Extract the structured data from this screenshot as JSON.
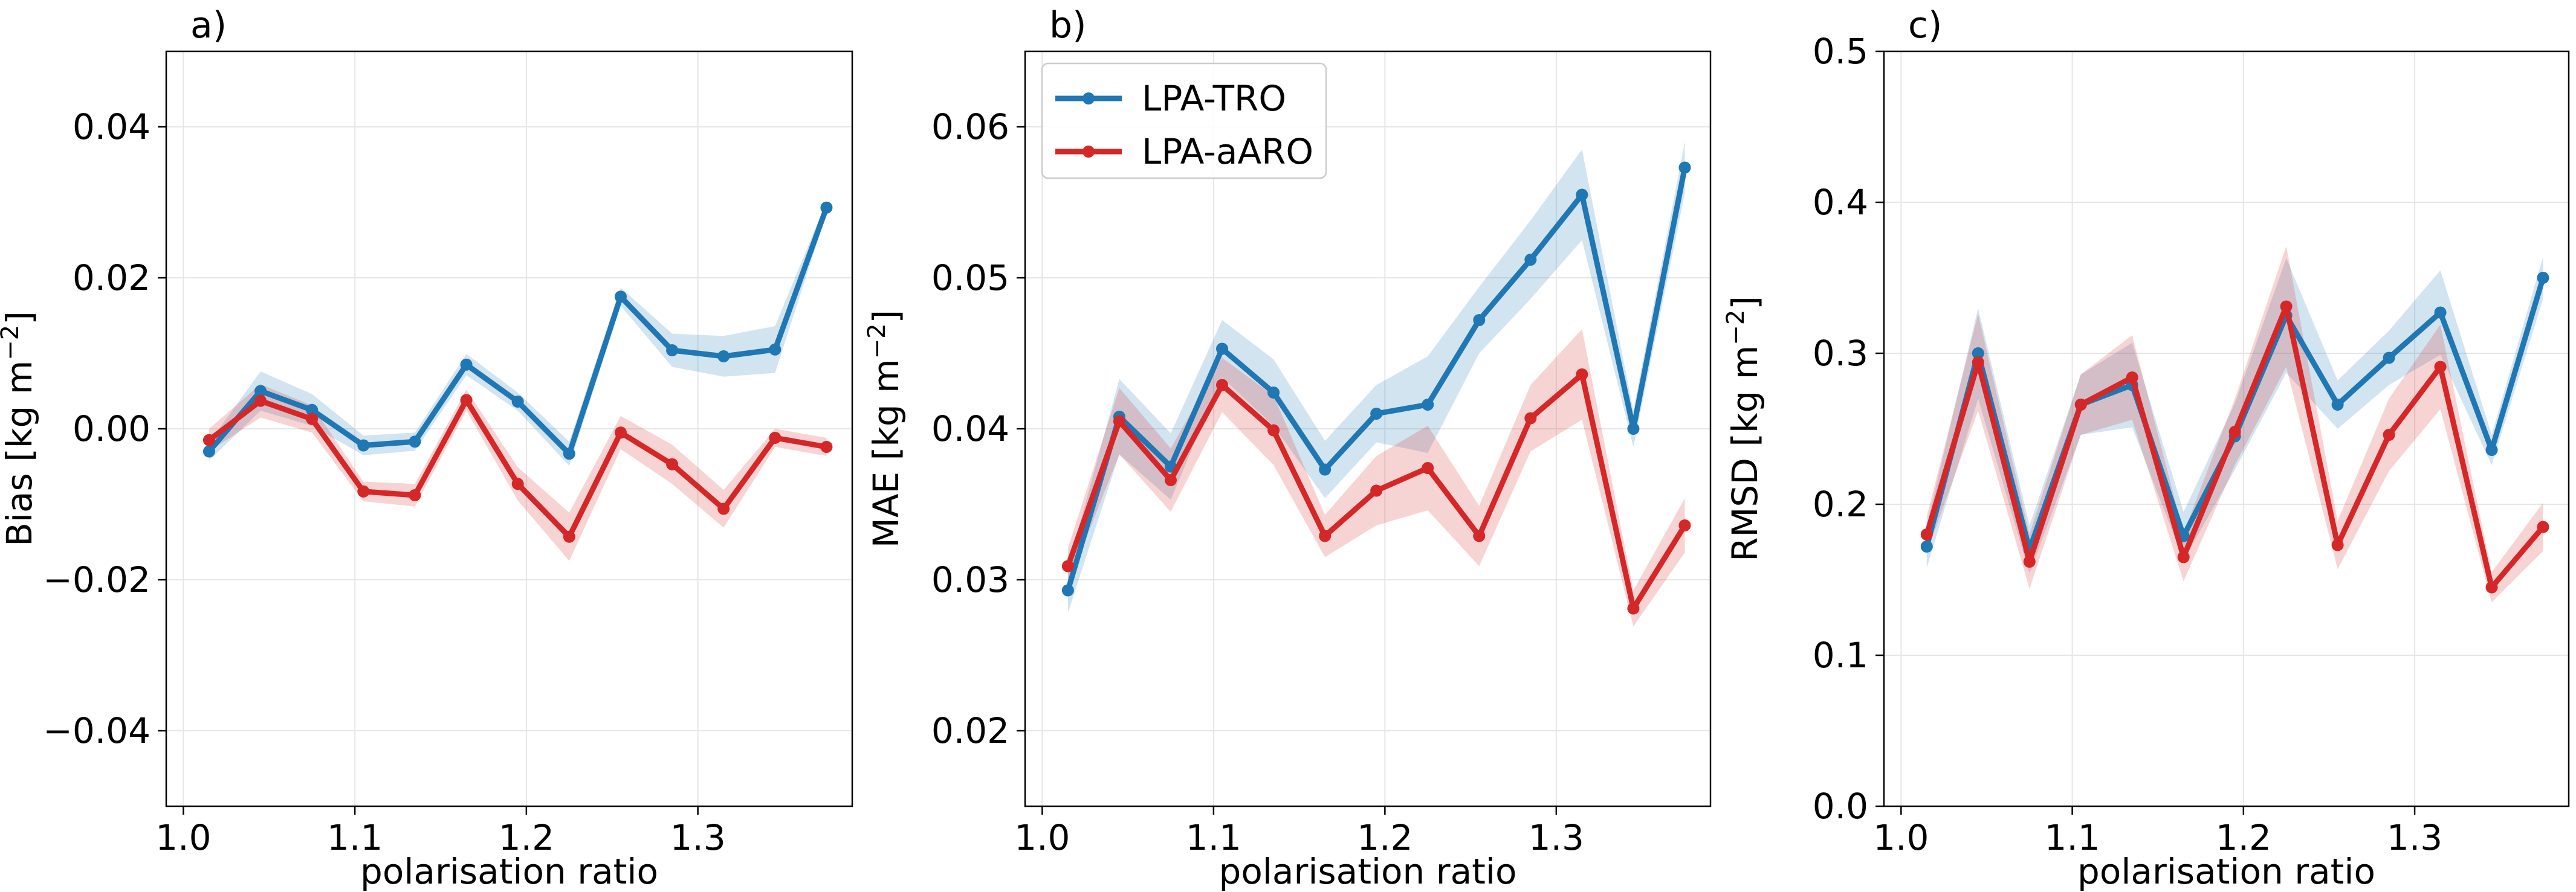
{
  "colors": {
    "tro": "#1f77b4",
    "aaro": "#d62728",
    "grid": "#e6e6e6",
    "axes": "#000000"
  },
  "legend": {
    "entries": [
      "LPA-TRO",
      "LPA-aARO"
    ],
    "location": "upper-left of panel b"
  },
  "chart_data": [
    {
      "type": "line",
      "panel_label": "a)",
      "xlabel": "polarisation ratio",
      "ylabel": "Bias [kg m",
      "ylabel_sup": "−2",
      "ylabel_end": "]",
      "xlim": [
        0.99,
        1.39
      ],
      "ylim": [
        -0.05,
        0.05
      ],
      "xticks": [
        1.0,
        1.1,
        1.2,
        1.3
      ],
      "xtick_labels": [
        "1.0",
        "1.1",
        "1.2",
        "1.3"
      ],
      "yticks": [
        -0.04,
        -0.02,
        0.0,
        0.02,
        0.04
      ],
      "ytick_labels": [
        "−0.04",
        "−0.02",
        "0.00",
        "0.02",
        "0.04"
      ],
      "x": [
        1.015,
        1.045,
        1.075,
        1.105,
        1.135,
        1.165,
        1.195,
        1.225,
        1.255,
        1.285,
        1.315,
        1.345,
        1.375
      ],
      "series": [
        {
          "name": "LPA-TRO",
          "color_key": "tro",
          "values": [
            -0.003,
            0.005,
            0.0025,
            -0.0022,
            -0.0017,
            0.0085,
            0.0036,
            -0.0033,
            0.0175,
            0.0104,
            0.0096,
            0.0105,
            0.0293
          ],
          "band": [
            0.0012,
            0.0026,
            0.0021,
            0.0013,
            0.0012,
            0.0014,
            0.0012,
            0.0016,
            0.0012,
            0.0022,
            0.0027,
            0.0031,
            0.0008
          ]
        },
        {
          "name": "LPA-aARO",
          "color_key": "aaro",
          "values": [
            -0.0015,
            0.0037,
            0.0013,
            -0.0083,
            -0.0088,
            0.0038,
            -0.0073,
            -0.0143,
            -0.0005,
            -0.0047,
            -0.0106,
            -0.0012,
            -0.0024
          ]
        },
        {
          "name": "LPA-aARO band",
          "color_key": "aaro",
          "band": [
            0.0015,
            0.0022,
            0.0018,
            0.0013,
            0.0015,
            0.0014,
            0.0022,
            0.0032,
            0.0022,
            0.0026,
            0.0025,
            0.0012,
            0.0012
          ]
        }
      ]
    },
    {
      "type": "line",
      "panel_label": "b)",
      "xlabel": "polarisation ratio",
      "ylabel": "MAE [kg m",
      "ylabel_sup": "−2",
      "ylabel_end": "]",
      "xlim": [
        0.99,
        1.39
      ],
      "ylim": [
        0.015,
        0.065
      ],
      "xticks": [
        1.0,
        1.1,
        1.2,
        1.3
      ],
      "xtick_labels": [
        "1.0",
        "1.1",
        "1.2",
        "1.3"
      ],
      "yticks": [
        0.02,
        0.03,
        0.04,
        0.05,
        0.06
      ],
      "ytick_labels": [
        "0.02",
        "0.03",
        "0.04",
        "0.05",
        "0.06"
      ],
      "x": [
        1.015,
        1.045,
        1.075,
        1.105,
        1.135,
        1.165,
        1.195,
        1.225,
        1.255,
        1.285,
        1.315,
        1.345,
        1.375
      ],
      "series": [
        {
          "name": "LPA-TRO",
          "color_key": "tro",
          "values": [
            0.0293,
            0.0408,
            0.0375,
            0.0453,
            0.0424,
            0.0373,
            0.041,
            0.0416,
            0.0472,
            0.0512,
            0.0555,
            0.04,
            0.0573
          ],
          "band": [
            0.0015,
            0.0025,
            0.0022,
            0.0019,
            0.0022,
            0.0019,
            0.0019,
            0.0032,
            0.0022,
            0.0026,
            0.003,
            0.0012,
            0.0017
          ]
        },
        {
          "name": "LPA-aARO",
          "color_key": "aaro",
          "values": [
            0.0309,
            0.0405,
            0.0366,
            0.0429,
            0.0399,
            0.0329,
            0.0359,
            0.0374,
            0.0329,
            0.0407,
            0.0436,
            0.0281,
            0.0336
          ]
        },
        {
          "name": "LPA-aARO band",
          "color_key": "aaro",
          "band": [
            0.0012,
            0.0022,
            0.0021,
            0.0018,
            0.0023,
            0.0014,
            0.0023,
            0.0028,
            0.002,
            0.0022,
            0.003,
            0.0012,
            0.0018
          ]
        }
      ]
    },
    {
      "type": "line",
      "panel_label": "c)",
      "xlabel": "polarisation ratio",
      "ylabel": "RMSD [kg m",
      "ylabel_sup": "−2",
      "ylabel_end": "]",
      "xlim": [
        0.99,
        1.39
      ],
      "ylim": [
        0.0,
        0.5
      ],
      "xticks": [
        1.0,
        1.1,
        1.2,
        1.3
      ],
      "xtick_labels": [
        "1.0",
        "1.1",
        "1.2",
        "1.3"
      ],
      "yticks": [
        0.0,
        0.1,
        0.2,
        0.3,
        0.4,
        0.5
      ],
      "ytick_labels": [
        "0.0",
        "0.1",
        "0.2",
        "0.3",
        "0.4",
        "0.5"
      ],
      "x": [
        1.015,
        1.045,
        1.075,
        1.105,
        1.135,
        1.165,
        1.195,
        1.225,
        1.255,
        1.285,
        1.315,
        1.345,
        1.375
      ],
      "series": [
        {
          "name": "LPA-TRO",
          "color_key": "tro",
          "values": [
            0.172,
            0.3,
            0.17,
            0.266,
            0.279,
            0.179,
            0.245,
            0.325,
            0.266,
            0.297,
            0.327,
            0.236,
            0.35
          ],
          "band": [
            0.014,
            0.03,
            0.016,
            0.02,
            0.028,
            0.016,
            0.022,
            0.038,
            0.016,
            0.018,
            0.028,
            0.01,
            0.014
          ]
        },
        {
          "name": "LPA-aARO",
          "color_key": "aaro",
          "values": [
            0.18,
            0.294,
            0.162,
            0.266,
            0.284,
            0.165,
            0.248,
            0.331,
            0.173,
            0.246,
            0.291,
            0.145,
            0.185
          ]
        },
        {
          "name": "LPA-aARO band",
          "color_key": "aaro",
          "band": [
            0.012,
            0.032,
            0.018,
            0.02,
            0.028,
            0.016,
            0.022,
            0.04,
            0.016,
            0.024,
            0.028,
            0.01,
            0.016
          ]
        }
      ]
    }
  ]
}
